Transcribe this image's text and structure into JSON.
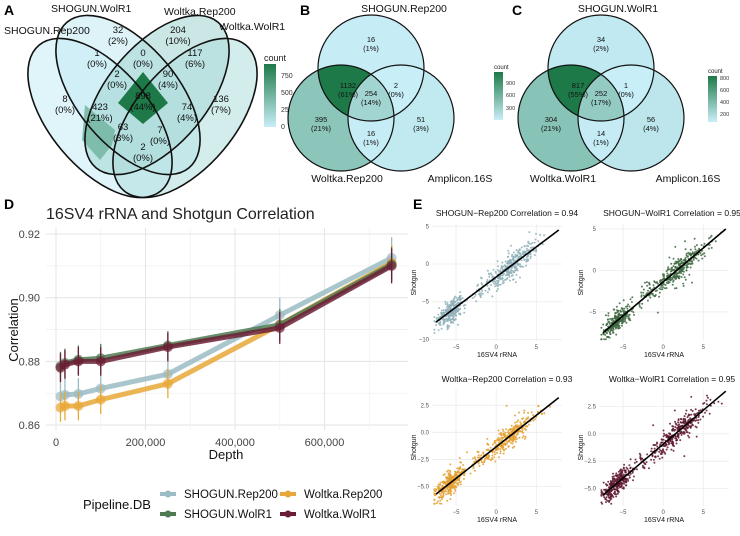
{
  "figure": {
    "panels": [
      "A",
      "B",
      "C",
      "D",
      "E"
    ]
  },
  "chart_data": [
    {
      "panel": "A",
      "type": "venn",
      "sets": [
        "SHOGUN.Rep200",
        "SHOGUN.WolR1",
        "Woltka.Rep200",
        "Woltka.WolR1"
      ],
      "regions": [
        {
          "sets": [
            "SHOGUN.Rep200"
          ],
          "count": 8,
          "pct": "0%"
        },
        {
          "sets": [
            "SHOGUN.WolR1"
          ],
          "count": 32,
          "pct": "2%"
        },
        {
          "sets": [
            "Woltka.Rep200"
          ],
          "count": 204,
          "pct": "10%"
        },
        {
          "sets": [
            "Woltka.WolR1"
          ],
          "count": 136,
          "pct": "7%"
        },
        {
          "sets": [
            "SHOGUN.Rep200",
            "SHOGUN.WolR1"
          ],
          "count": 1,
          "pct": "0%"
        },
        {
          "sets": [
            "SHOGUN.WolR1",
            "Woltka.Rep200"
          ],
          "count": 0,
          "pct": "0%"
        },
        {
          "sets": [
            "Woltka.Rep200",
            "Woltka.WolR1"
          ],
          "count": 117,
          "pct": "6%"
        },
        {
          "sets": [
            "SHOGUN.Rep200",
            "SHOGUN.WolR1",
            "Woltka.Rep200"
          ],
          "count": 2,
          "pct": "0%"
        },
        {
          "sets": [
            "SHOGUN.WolR1",
            "Woltka.Rep200",
            "Woltka.WolR1"
          ],
          "count": 90,
          "pct": "4%"
        },
        {
          "sets": [
            "SHOGUN.Rep200",
            "SHOGUN.WolR1",
            "Woltka.Rep200",
            "Woltka.WolR1"
          ],
          "count": 898,
          "pct": "44%"
        },
        {
          "sets": [
            "SHOGUN.Rep200",
            "Woltka.Rep200"
          ],
          "count": 423,
          "pct": "21%"
        },
        {
          "sets": [
            "SHOGUN.WolR1",
            "Woltka.WolR1"
          ],
          "count": 74,
          "pct": "4%"
        },
        {
          "sets": [
            "SHOGUN.Rep200",
            "Woltka.Rep200",
            "Woltka.WolR1"
          ],
          "count": 63,
          "pct": "3%"
        },
        {
          "sets": [
            "SHOGUN.Rep200",
            "SHOGUN.WolR1",
            "Woltka.WolR1"
          ],
          "count": 7,
          "pct": "0%"
        },
        {
          "sets": [
            "SHOGUN.Rep200",
            "Woltka.WolR1"
          ],
          "count": 2,
          "pct": "0%"
        }
      ],
      "legend": {
        "title": "count",
        "ticks": [
          "750",
          "500",
          "250",
          "0"
        ],
        "range": [
          0,
          898
        ]
      }
    },
    {
      "panel": "B",
      "type": "venn",
      "sets": [
        "SHOGUN.Rep200",
        "Woltka.Rep200",
        "Amplicon.16S"
      ],
      "regions": [
        {
          "sets": [
            "SHOGUN.Rep200"
          ],
          "count": 16,
          "pct": "1%"
        },
        {
          "sets": [
            "SHOGUN.Rep200",
            "Woltka.Rep200"
          ],
          "count": 1132,
          "pct": "61%"
        },
        {
          "sets": [
            "SHOGUN.Rep200",
            "Woltka.Rep200",
            "Amplicon.16S"
          ],
          "count": 254,
          "pct": "14%"
        },
        {
          "sets": [
            "SHOGUN.Rep200",
            "Amplicon.16S"
          ],
          "count": 2,
          "pct": "0%"
        },
        {
          "sets": [
            "Woltka.Rep200"
          ],
          "count": 395,
          "pct": "21%"
        },
        {
          "sets": [
            "Amplicon.16S"
          ],
          "count": 51,
          "pct": "3%"
        },
        {
          "sets": [
            "Woltka.Rep200",
            "Amplicon.16S"
          ],
          "count": 16,
          "pct": "1%"
        }
      ],
      "legend": {
        "title": "count",
        "ticks": [
          "900",
          "600",
          "300"
        ],
        "range": [
          0,
          1132
        ]
      }
    },
    {
      "panel": "C",
      "type": "venn",
      "sets": [
        "SHOGUN.WolR1",
        "Woltka.WolR1",
        "Amplicon.16S"
      ],
      "regions": [
        {
          "sets": [
            "SHOGUN.WolR1"
          ],
          "count": 34,
          "pct": "2%"
        },
        {
          "sets": [
            "SHOGUN.WolR1",
            "Woltka.WolR1"
          ],
          "count": 817,
          "pct": "55%"
        },
        {
          "sets": [
            "SHOGUN.WolR1",
            "Woltka.WolR1",
            "Amplicon.16S"
          ],
          "count": 252,
          "pct": "17%"
        },
        {
          "sets": [
            "SHOGUN.WolR1",
            "Amplicon.16S"
          ],
          "count": 1,
          "pct": "0%"
        },
        {
          "sets": [
            "Woltka.WolR1"
          ],
          "count": 304,
          "pct": "21%"
        },
        {
          "sets": [
            "Amplicon.16S"
          ],
          "count": 56,
          "pct": "4%"
        },
        {
          "sets": [
            "Woltka.WolR1",
            "Amplicon.16S"
          ],
          "count": 14,
          "pct": "1%"
        }
      ],
      "legend": {
        "title": "count",
        "ticks": [
          "800",
          "600",
          "400",
          "200"
        ],
        "range": [
          0,
          817
        ]
      }
    },
    {
      "panel": "D",
      "type": "line",
      "title": "16SV4 rRNA and Shotgun Correlation",
      "xlabel": "Depth",
      "ylabel": "Correlation",
      "xlim": [
        0,
        780000
      ],
      "ylim": [
        0.858,
        0.922
      ],
      "xticks": [
        0,
        200000,
        400000,
        600000
      ],
      "xtick_labels": [
        "0",
        "200,000",
        "400,000",
        "600,000"
      ],
      "yticks": [
        0.86,
        0.88,
        0.9,
        0.92
      ],
      "ytick_labels": [
        "0.86",
        "0.88",
        "0.90",
        "0.92"
      ],
      "grid": true,
      "x": [
        10000,
        20000,
        50000,
        100000,
        250000,
        500000,
        750000
      ],
      "legend": {
        "title": "Pipeline.DB",
        "placement": "bottom"
      },
      "series": [
        {
          "name": "SHOGUN.Rep200",
          "color": "#9bbcc4",
          "values": [
            0.869,
            0.8695,
            0.8698,
            0.8715,
            0.876,
            0.8945,
            0.9125
          ],
          "err": [
            0.005,
            0.005,
            0.005,
            0.005,
            0.005,
            0.0055,
            0.0065
          ]
        },
        {
          "name": "Woltka.Rep200",
          "color": "#e8a838",
          "values": [
            0.8655,
            0.866,
            0.866,
            0.868,
            0.873,
            0.8915,
            0.911
          ],
          "err": [
            0.0045,
            0.0045,
            0.0045,
            0.0045,
            0.0045,
            0.005,
            0.0055
          ]
        },
        {
          "name": "SHOGUN.WolR1",
          "color": "#4f7a52",
          "values": [
            0.8785,
            0.8795,
            0.8805,
            0.881,
            0.885,
            0.8915,
            0.9105
          ],
          "err": [
            0.0045,
            0.0045,
            0.0045,
            0.0045,
            0.0045,
            0.005,
            0.0055
          ]
        },
        {
          "name": "Woltka.WolR1",
          "color": "#6b1e35",
          "values": [
            0.878,
            0.879,
            0.88,
            0.88,
            0.8845,
            0.8905,
            0.91
          ],
          "err": [
            0.0045,
            0.0045,
            0.0045,
            0.0045,
            0.0045,
            0.005,
            0.0055
          ]
        }
      ]
    },
    {
      "panel": "E",
      "type": "scatter",
      "subplots": [
        {
          "title": "SHOGUN−Rep200 Correlation = 0.94",
          "color": "#8fb0b8",
          "xlabel": "16SV4 rRNA",
          "ylabel": "Shotgun",
          "xticks": [
            "-5",
            "0",
            "5"
          ],
          "yticks": [
            "5",
            "0",
            "-5",
            "-10"
          ],
          "xlim": [
            -8,
            8.2
          ],
          "ylim": [
            -10.2,
            5.3
          ],
          "fit": {
            "x0": -7.5,
            "y0": -7.7,
            "x1": 7.8,
            "y1": 4.5
          },
          "r": 0.94
        },
        {
          "title": "SHOGUN−WolR1 Correlation = 0.95",
          "color": "#3f6a42",
          "xlabel": "16SV4 rRNA",
          "ylabel": "Shotgun",
          "xticks": [
            "-5",
            "0",
            "5"
          ],
          "yticks": [
            "5",
            "0",
            "-5"
          ],
          "xlim": [
            -8,
            8.2
          ],
          "ylim": [
            -8.5,
            5.6
          ],
          "fit": {
            "x0": -7.5,
            "y0": -7.5,
            "x1": 7.8,
            "y1": 5.0
          },
          "r": 0.95
        },
        {
          "title": "Woltka−Rep200 Correlation = 0.93",
          "color": "#e3a030",
          "xlabel": "16SV4 rRNA",
          "ylabel": "Shotgun",
          "xticks": [
            "-5",
            "0",
            "5"
          ],
          "yticks": [
            "2.5",
            "0.0",
            "-2.5",
            "-5.0"
          ],
          "xlim": [
            -8,
            8.2
          ],
          "ylim": [
            -6.8,
            4.0
          ],
          "fit": {
            "x0": -7.5,
            "y0": -5.7,
            "x1": 7.8,
            "y1": 3.2
          },
          "r": 0.93
        },
        {
          "title": "Woltka−WolR1 Correlation = 0.95",
          "color": "#5e1830",
          "xlabel": "16SV4 rRNA",
          "ylabel": "Shotgun",
          "xticks": [
            "-5",
            "0",
            "5"
          ],
          "yticks": [
            "2.5",
            "0.0",
            "-2.5",
            "-5.0"
          ],
          "xlim": [
            -8,
            8.2
          ],
          "ylim": [
            -6.6,
            4.1
          ],
          "fit": {
            "x0": -7.5,
            "y0": -5.6,
            "x1": 7.8,
            "y1": 3.9
          },
          "r": 0.95
        }
      ]
    }
  ]
}
